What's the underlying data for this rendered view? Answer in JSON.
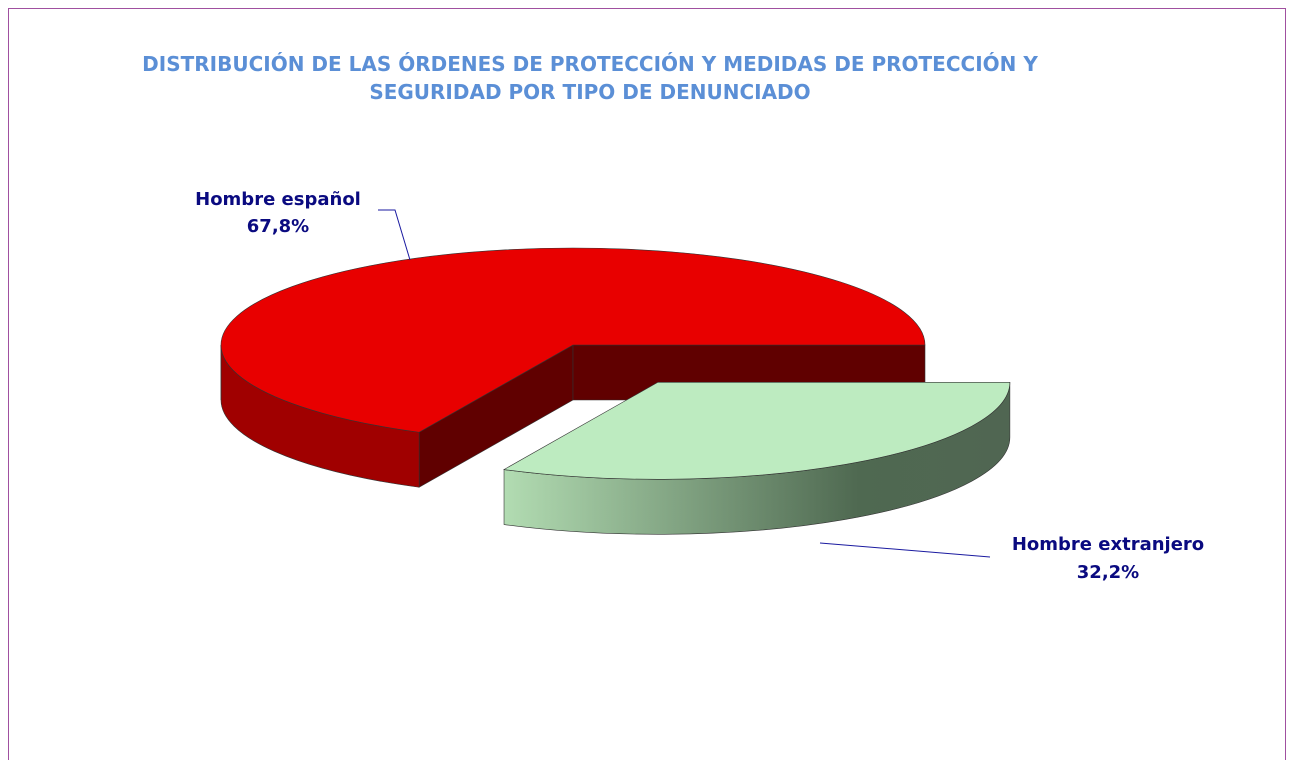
{
  "chart_data": {
    "type": "pie",
    "title": "DISTRIBUCIÓN DE LAS ÓRDENES DE PROTECCIÓN Y MEDIDAS DE PROTECCIÓN Y SEGURIDAD POR TIPO DE DENUNCIADO",
    "categories": [
      "Hombre español",
      "Hombre extranjero"
    ],
    "values": [
      67.8,
      32.2
    ],
    "value_labels": [
      "67,8%",
      "32,2%"
    ],
    "colors": [
      "#e80000",
      "#bdebc0"
    ]
  }
}
